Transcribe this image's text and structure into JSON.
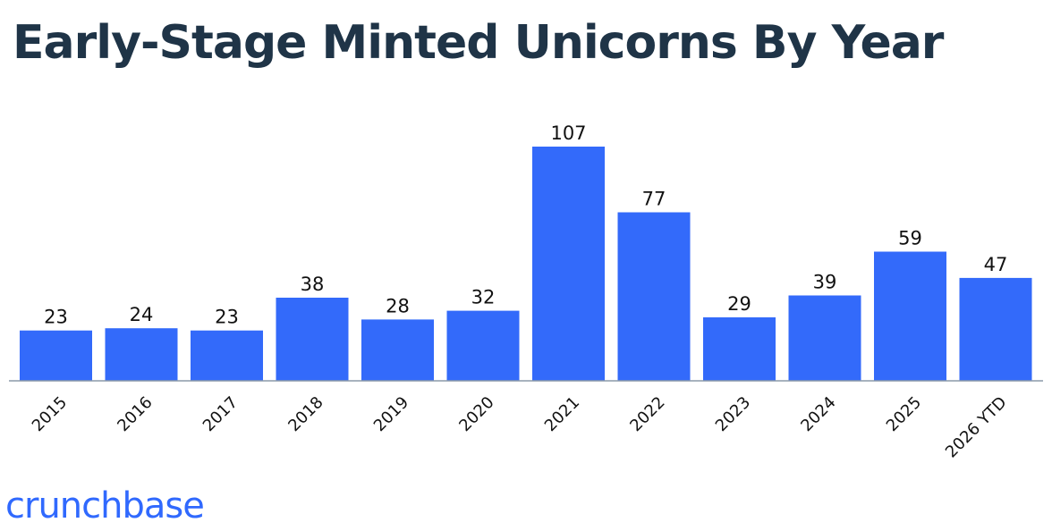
{
  "chart_data": {
    "type": "bar",
    "title": "Early-Stage Minted Unicorns By Year",
    "categories": [
      "2015",
      "2016",
      "2017",
      "2018",
      "2019",
      "2020",
      "2021",
      "2022",
      "2023",
      "2024",
      "2025",
      "2026 YTD"
    ],
    "values": [
      23,
      24,
      23,
      38,
      28,
      32,
      107,
      77,
      29,
      39,
      59,
      47
    ],
    "xlabel": "",
    "ylabel": "",
    "ylim": [
      0,
      107
    ],
    "grid": false,
    "data_labels": true
  },
  "colors": {
    "bar": "#336afa",
    "axis": "#8c9aa8",
    "title": "#1f3447",
    "label": "#111111",
    "brand": "#3069fe"
  },
  "brand": {
    "logo_text": "crunchbase"
  }
}
